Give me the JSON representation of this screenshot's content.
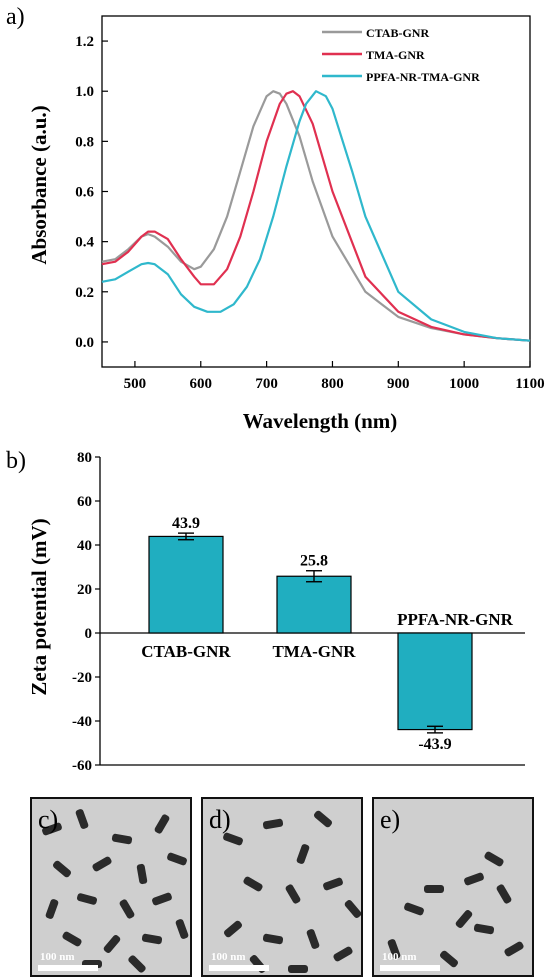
{
  "panel_labels": {
    "a": "a)",
    "b": "b)",
    "c": "c)",
    "d": "d)",
    "e": "e)"
  },
  "chart_data": [
    {
      "type": "line",
      "xlabel": "Wavelength (nm)",
      "ylabel": "Absorbance (a.u.)",
      "xlim": [
        450,
        1100
      ],
      "ylim": [
        -0.1,
        1.3
      ],
      "x_ticks": [
        500,
        600,
        700,
        800,
        900,
        1000,
        1100
      ],
      "y_ticks": [
        0.0,
        0.2,
        0.4,
        0.6,
        0.8,
        1.0,
        1.2
      ],
      "legend_position": "top-right",
      "series": [
        {
          "name": "CTAB-GNR",
          "color": "#9a9a9a",
          "x": [
            450,
            470,
            490,
            510,
            520,
            530,
            550,
            570,
            590,
            600,
            620,
            640,
            660,
            680,
            700,
            710,
            720,
            730,
            750,
            770,
            800,
            850,
            900,
            950,
            1000,
            1050,
            1100
          ],
          "y": [
            0.32,
            0.33,
            0.37,
            0.42,
            0.43,
            0.42,
            0.38,
            0.32,
            0.29,
            0.3,
            0.37,
            0.5,
            0.68,
            0.86,
            0.98,
            1.0,
            0.99,
            0.95,
            0.82,
            0.64,
            0.42,
            0.2,
            0.1,
            0.055,
            0.03,
            0.015,
            0.005
          ]
        },
        {
          "name": "TMA-GNR",
          "color": "#e03050",
          "x": [
            450,
            470,
            490,
            510,
            520,
            530,
            550,
            570,
            590,
            600,
            620,
            640,
            660,
            680,
            700,
            720,
            730,
            740,
            750,
            770,
            800,
            850,
            900,
            950,
            1000,
            1050,
            1100
          ],
          "y": [
            0.31,
            0.32,
            0.36,
            0.42,
            0.44,
            0.44,
            0.41,
            0.33,
            0.26,
            0.23,
            0.23,
            0.29,
            0.42,
            0.6,
            0.8,
            0.95,
            0.99,
            1.0,
            0.98,
            0.87,
            0.6,
            0.26,
            0.12,
            0.06,
            0.03,
            0.015,
            0.005
          ]
        },
        {
          "name": "PPFA-NR-TMA-GNR",
          "color": "#2fb8cc",
          "x": [
            450,
            470,
            490,
            510,
            520,
            530,
            550,
            570,
            590,
            610,
            630,
            650,
            670,
            690,
            710,
            730,
            750,
            760,
            775,
            790,
            800,
            830,
            850,
            900,
            950,
            1000,
            1050,
            1100
          ],
          "y": [
            0.24,
            0.25,
            0.28,
            0.31,
            0.315,
            0.31,
            0.27,
            0.19,
            0.14,
            0.12,
            0.12,
            0.15,
            0.22,
            0.33,
            0.5,
            0.7,
            0.88,
            0.95,
            1.0,
            0.98,
            0.93,
            0.68,
            0.5,
            0.2,
            0.09,
            0.04,
            0.015,
            0.005
          ]
        }
      ]
    },
    {
      "type": "bar",
      "ylabel": "Zeta potential (mV)",
      "ylim": [
        -60,
        80
      ],
      "y_ticks": [
        -60,
        -40,
        -20,
        0,
        20,
        40,
        60,
        80
      ],
      "categories": [
        "CTAB-GNR",
        "TMA-GNR",
        "PPFA-NR-GNR"
      ],
      "values": [
        43.9,
        25.8,
        -43.9
      ],
      "value_labels": [
        "43.9",
        "25.8",
        "-43.9"
      ],
      "errors": [
        1.5,
        2.5,
        1.5
      ],
      "bar_color": "#20aec0"
    }
  ],
  "tem_images": [
    {
      "label": "c)",
      "scale": "100 nm"
    },
    {
      "label": "d)",
      "scale": "100 nm"
    },
    {
      "label": "e)",
      "scale": "100 nm"
    }
  ]
}
